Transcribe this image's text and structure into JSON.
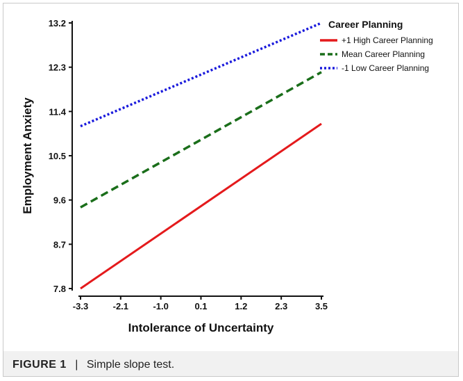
{
  "chart_data": {
    "type": "line",
    "xlabel": "Intolerance of Uncertainty",
    "ylabel": "Employment Anxiety",
    "x_ticks": [
      "-3.3",
      "-2.1",
      "-1.0",
      "0.1",
      "1.2",
      "2.3",
      "3.5"
    ],
    "y_ticks": [
      "7.8",
      "8.7",
      "9.6",
      "10.5",
      "11.4",
      "12.3",
      "13.2"
    ],
    "xlim": [
      -3.3,
      3.5
    ],
    "ylim": [
      7.8,
      13.2
    ],
    "grid": false,
    "legend_title": "Career Planning",
    "legend_position": "top-right",
    "series": [
      {
        "name": "+1 High Career Planning",
        "color": "#e41a1c",
        "dash": "solid",
        "x": [
          -3.3,
          3.5
        ],
        "y": [
          7.8,
          11.15
        ]
      },
      {
        "name": "Mean Career Planning",
        "color": "#1a6e1a",
        "dash": "dashed",
        "x": [
          -3.3,
          3.5
        ],
        "y": [
          9.45,
          12.2
        ]
      },
      {
        "name": "-1 Low Career Planning",
        "color": "#1a1adc",
        "dash": "dotted",
        "x": [
          -3.3,
          3.5
        ],
        "y": [
          11.1,
          13.2
        ]
      }
    ]
  },
  "caption": {
    "label": "FIGURE 1",
    "separator": "|",
    "text": "Simple slope test."
  }
}
